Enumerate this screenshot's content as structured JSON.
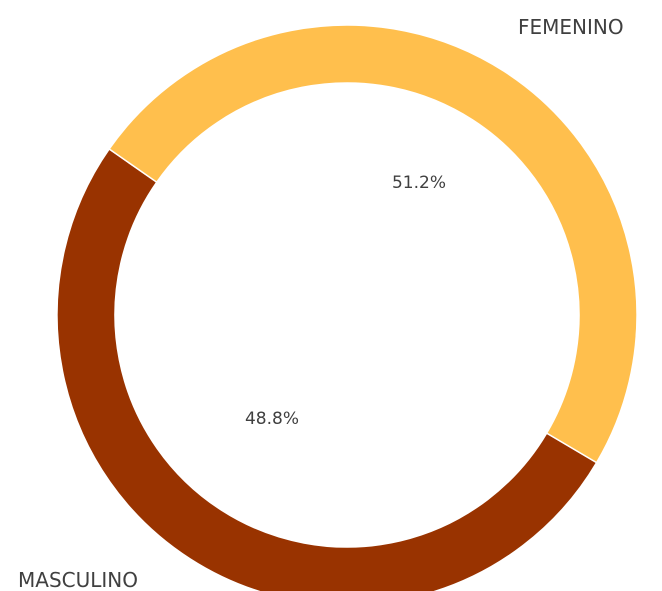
{
  "chart_data": {
    "type": "pie",
    "donut": true,
    "categories": [
      "FEMENINO",
      "MASCULINO"
    ],
    "values": [
      51.2,
      48.8
    ],
    "labels": [
      "51.2%",
      "48.8%"
    ],
    "colors": [
      "#993300",
      "#FFBF4D"
    ],
    "legend": "none"
  }
}
